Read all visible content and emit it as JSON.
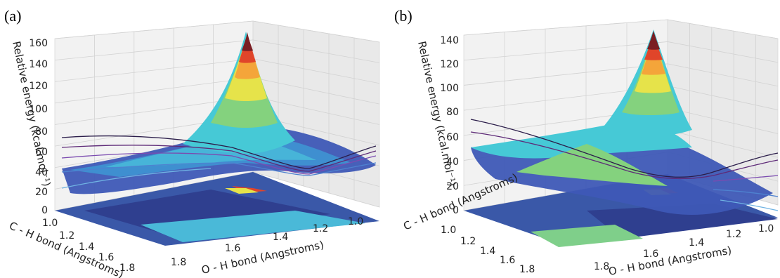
{
  "chart_data": [
    {
      "type": "surface3d",
      "panel_label": "(a)",
      "title": "",
      "xlabel": "O - H bond (Angstroms)",
      "ylabel": "C - H bond (Angstroms)",
      "zlabel": "Relative energy (kcal.mol⁻¹)",
      "x_ticks": [
        "1.8",
        "1.6",
        "1.4",
        "1.2",
        "1.0"
      ],
      "y_ticks": [
        "1.0",
        "1.2",
        "1.4",
        "1.6",
        "1.8"
      ],
      "z_ticks": [
        "0",
        "20",
        "40",
        "60",
        "80",
        "100",
        "120",
        "140",
        "160"
      ],
      "xlim": [
        0.9,
        1.9
      ],
      "ylim": [
        0.9,
        1.9
      ],
      "zlim": [
        0,
        170
      ],
      "grid": true,
      "colormap": [
        "#3b2f7d",
        "#3f53b5",
        "#3fa0d6",
        "#46c9d6",
        "#84d27e",
        "#e6e34a",
        "#f4a53a",
        "#e0452a",
        "#7a1e23"
      ]
    },
    {
      "type": "surface3d",
      "panel_label": "(b)",
      "title": "",
      "xlabel": "O - H bond (Angstroms)",
      "ylabel": "C - H bond (Angstroms)",
      "zlabel": "Relative energy (kcal.mol⁻¹)",
      "x_ticks": [
        "1.8",
        "1.6",
        "1.4",
        "1.2",
        "1.0"
      ],
      "y_ticks": [
        "1.0",
        "1.2",
        "1.4",
        "1.6",
        "1.8"
      ],
      "z_ticks": [
        "0",
        "20",
        "40",
        "60",
        "80",
        "100",
        "120",
        "140"
      ],
      "xlim": [
        0.9,
        1.9
      ],
      "ylim": [
        0.9,
        1.9
      ],
      "zlim": [
        0,
        145
      ],
      "grid": true,
      "colormap": [
        "#3b2f7d",
        "#3f53b5",
        "#3fa0d6",
        "#46c9d6",
        "#84d27e",
        "#e6e34a",
        "#f4a53a",
        "#e0452a",
        "#7a1e23"
      ]
    }
  ]
}
